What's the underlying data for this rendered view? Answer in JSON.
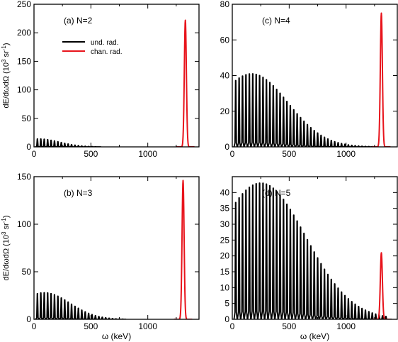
{
  "figure": {
    "ylabel": "dE/dωdΩ (10^3 sr^-1)",
    "xlabel": "ω (keV)",
    "colors": {
      "undulator": "#000000",
      "channeling": "#e8141c",
      "axes": "#000000"
    }
  },
  "chart_data": [
    {
      "type": "line",
      "panel": "(a) N=2",
      "xlim": [
        0,
        1450
      ],
      "ylim": [
        0,
        250
      ],
      "xticks": [
        0,
        500,
        1000
      ],
      "yticks": [
        0,
        50,
        100,
        150,
        200,
        250
      ],
      "show_xlabel": false,
      "show_ylabel": true,
      "legend": {
        "placement": "upper-left",
        "entries": [
          "und. rad.",
          "chan. rad."
        ]
      },
      "series": [
        {
          "name": "und. rad.",
          "kind": "undulator-peaks",
          "fundamental_keV": 30,
          "envelope_peak": 14,
          "envelope_center_keV": 40,
          "envelope_width_keV": 260,
          "cutoff_keV": 560
        },
        {
          "name": "chan. rad.",
          "kind": "gaussian",
          "center_keV": 1330,
          "peak": 222,
          "sigma_keV": 9
        }
      ]
    },
    {
      "type": "line",
      "panel": "(c) N=4",
      "xlim": [
        0,
        1450
      ],
      "ylim": [
        0,
        80
      ],
      "xticks": [
        0,
        500,
        1000
      ],
      "yticks": [
        0,
        20,
        40,
        60,
        80
      ],
      "show_xlabel": false,
      "show_ylabel": false,
      "series": [
        {
          "name": "und. rad.",
          "kind": "undulator-peaks",
          "fundamental_keV": 30,
          "envelope_peak": 41,
          "envelope_center_keV": 170,
          "envelope_width_keV": 450,
          "cutoff_keV": 1240
        },
        {
          "name": "chan. rad.",
          "kind": "gaussian",
          "center_keV": 1310,
          "peak": 75,
          "sigma_keV": 9
        }
      ]
    },
    {
      "type": "line",
      "panel": "(b) N=3",
      "xlim": [
        0,
        1450
      ],
      "ylim": [
        0,
        150
      ],
      "xticks": [
        0,
        500,
        1000
      ],
      "yticks": [
        0,
        50,
        100,
        150
      ],
      "show_xlabel": true,
      "show_ylabel": true,
      "series": [
        {
          "name": "und. rad.",
          "kind": "undulator-peaks",
          "fundamental_keV": 30,
          "envelope_peak": 28,
          "envelope_center_keV": 90,
          "envelope_width_keV": 320,
          "cutoff_keV": 780
        },
        {
          "name": "chan. rad.",
          "kind": "gaussian",
          "center_keV": 1310,
          "peak": 146,
          "sigma_keV": 9
        }
      ]
    },
    {
      "type": "line",
      "panel": "(d) N=5",
      "xlim": [
        0,
        1450
      ],
      "ylim": [
        0,
        45
      ],
      "xticks": [
        0,
        500,
        1000
      ],
      "yticks": [
        0,
        5,
        10,
        15,
        20,
        25,
        30,
        35,
        40
      ],
      "show_xlabel": true,
      "show_ylabel": false,
      "series": [
        {
          "name": "und. rad.",
          "kind": "undulator-peaks",
          "fundamental_keV": 30,
          "envelope_peak": 43,
          "envelope_center_keV": 250,
          "envelope_width_keV": 560,
          "cutoff_keV": 1370
        },
        {
          "name": "chan. rad.",
          "kind": "gaussian",
          "center_keV": 1310,
          "peak": 21,
          "sigma_keV": 9
        }
      ]
    }
  ]
}
